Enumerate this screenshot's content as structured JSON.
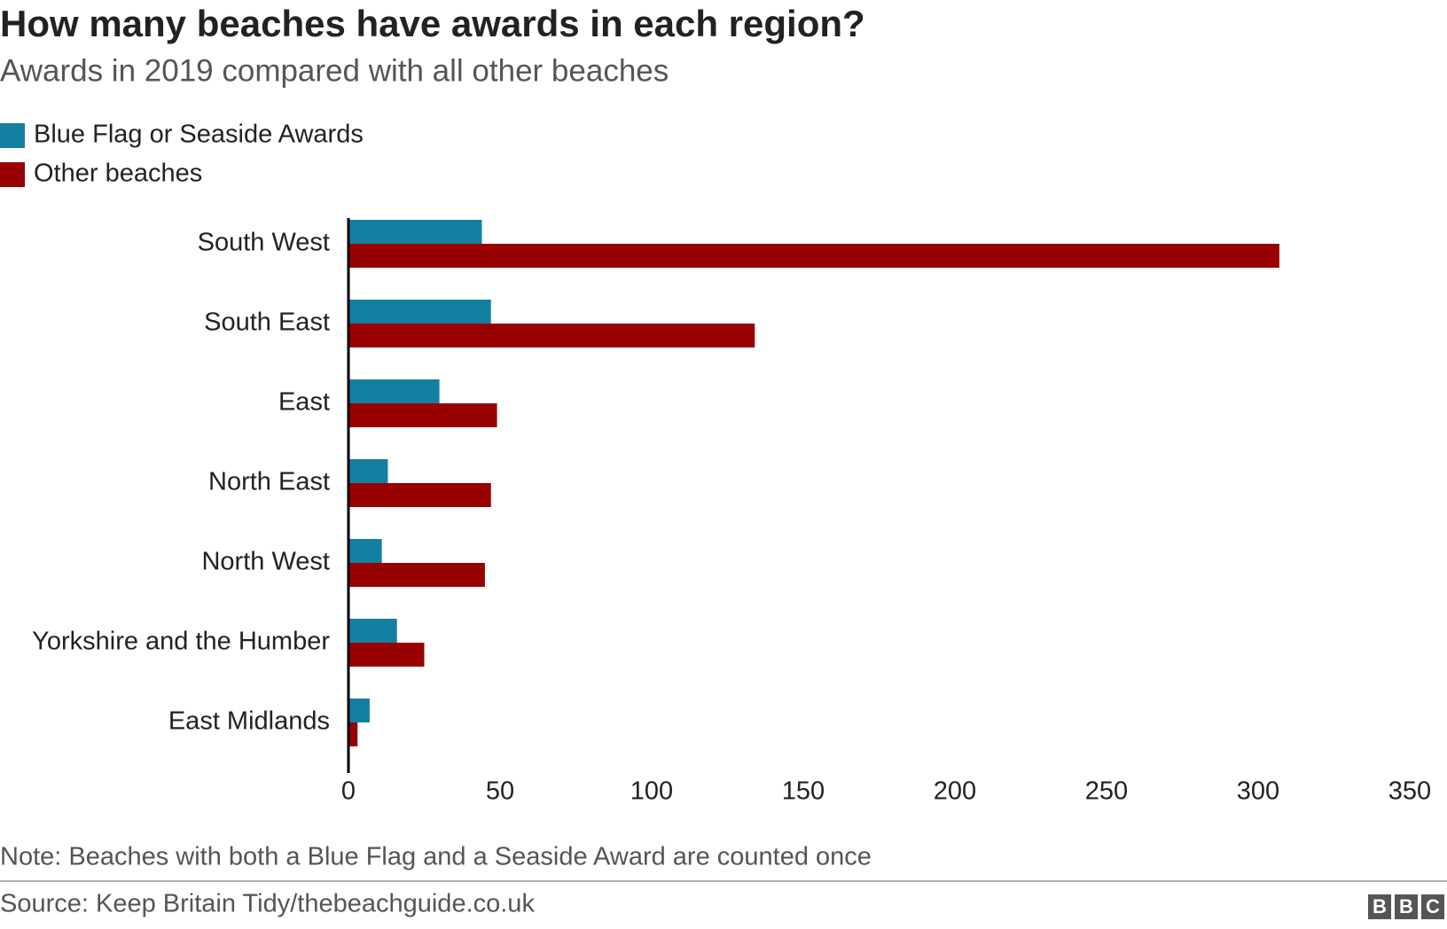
{
  "chart_data": {
    "type": "bar",
    "orientation": "horizontal",
    "title": "How many beaches have awards in each region?",
    "subtitle": "Awards in 2019 compared with all other beaches",
    "categories": [
      "South West",
      "South East",
      "East",
      "North East",
      "North West",
      "Yorkshire and the Humber",
      "East Midlands"
    ],
    "series": [
      {
        "name": "Blue Flag or Seaside Awards",
        "color": "#1380a1",
        "values": [
          44,
          47,
          30,
          13,
          11,
          16,
          7
        ]
      },
      {
        "name": "Other beaches",
        "color": "#990000",
        "values": [
          307,
          134,
          49,
          47,
          45,
          25,
          3
        ]
      }
    ],
    "xlim": [
      0,
      350
    ],
    "xticks": [
      0,
      50,
      100,
      150,
      200,
      250,
      300,
      350
    ],
    "grid": false,
    "note": "Note: Beaches with both a Blue Flag and a Seaside Award are counted once",
    "source": "Source: Keep Britain Tidy/thebeachguide.co.uk",
    "logo": [
      "B",
      "B",
      "C"
    ]
  }
}
